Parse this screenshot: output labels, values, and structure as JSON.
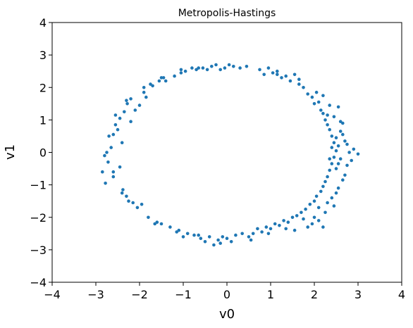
{
  "chart_data": {
    "type": "scatter",
    "title": "Metropolis-Hastings",
    "xlabel": "v0",
    "ylabel": "v1",
    "xlim": [
      -4,
      4
    ],
    "ylim": [
      -4,
      4
    ],
    "xticks": [
      -4,
      -3,
      -2,
      -1,
      0,
      1,
      2,
      3,
      4
    ],
    "yticks": [
      -4,
      -3,
      -2,
      -1,
      0,
      1,
      2,
      3,
      4
    ],
    "xtick_labels": [
      "−4",
      "−3",
      "−2",
      "−1",
      "0",
      "1",
      "2",
      "3",
      "4"
    ],
    "ytick_labels": [
      "−4",
      "−3",
      "−2",
      "−1",
      "0",
      "1",
      "2",
      "3",
      "4"
    ],
    "grid": false,
    "marker_color": "#1f77b4",
    "points": [
      [
        -2.85,
        -0.6
      ],
      [
        -2.8,
        -0.1
      ],
      [
        -2.78,
        -0.95
      ],
      [
        -2.72,
        -0.3
      ],
      [
        -2.7,
        0.5
      ],
      [
        -2.65,
        0.15
      ],
      [
        -2.6,
        -0.75
      ],
      [
        -2.6,
        0.55
      ],
      [
        -2.55,
        0.85
      ],
      [
        -2.5,
        0.7
      ],
      [
        -2.45,
        -0.45
      ],
      [
        -2.45,
        1.05
      ],
      [
        -2.4,
        0.3
      ],
      [
        -2.38,
        -1.15
      ],
      [
        -2.35,
        1.25
      ],
      [
        -2.3,
        -1.35
      ],
      [
        -2.28,
        1.5
      ],
      [
        -2.25,
        -1.5
      ],
      [
        -2.2,
        1.65
      ],
      [
        -2.2,
        0.95
      ],
      [
        -2.15,
        -1.55
      ],
      [
        -2.1,
        1.3
      ],
      [
        -2.05,
        -1.7
      ],
      [
        -2.0,
        1.45
      ],
      [
        -1.95,
        -1.6
      ],
      [
        -1.9,
        1.85
      ],
      [
        -1.85,
        1.7
      ],
      [
        -1.8,
        -2.0
      ],
      [
        -1.75,
        2.1
      ],
      [
        -1.7,
        2.05
      ],
      [
        -1.6,
        -2.15
      ],
      [
        -1.55,
        2.2
      ],
      [
        -1.5,
        -2.2
      ],
      [
        -1.45,
        2.3
      ],
      [
        -1.4,
        2.2
      ],
      [
        -1.3,
        -2.3
      ],
      [
        -1.2,
        2.35
      ],
      [
        -1.1,
        -2.4
      ],
      [
        -1.05,
        2.45
      ],
      [
        -1.0,
        -2.6
      ],
      [
        -0.95,
        2.5
      ],
      [
        -0.9,
        -2.5
      ],
      [
        -0.8,
        2.6
      ],
      [
        -0.75,
        -2.55
      ],
      [
        -0.7,
        2.55
      ],
      [
        -0.6,
        -2.65
      ],
      [
        -0.55,
        2.6
      ],
      [
        -0.5,
        -2.75
      ],
      [
        -0.45,
        2.55
      ],
      [
        -0.4,
        -2.6
      ],
      [
        -0.35,
        2.65
      ],
      [
        -0.3,
        -2.85
      ],
      [
        -0.25,
        2.7
      ],
      [
        -0.2,
        -2.7
      ],
      [
        -0.15,
        2.55
      ],
      [
        -0.1,
        -2.6
      ],
      [
        -0.05,
        2.6
      ],
      [
        0.0,
        -2.65
      ],
      [
        0.05,
        2.7
      ],
      [
        0.1,
        -2.75
      ],
      [
        0.15,
        2.65
      ],
      [
        0.2,
        -2.55
      ],
      [
        0.3,
        2.6
      ],
      [
        0.35,
        -2.5
      ],
      [
        0.45,
        2.65
      ],
      [
        0.5,
        -2.6
      ],
      [
        0.6,
        -2.5
      ],
      [
        0.7,
        -2.35
      ],
      [
        0.75,
        2.55
      ],
      [
        0.8,
        -2.45
      ],
      [
        0.85,
        2.4
      ],
      [
        0.9,
        -2.3
      ],
      [
        0.95,
        2.6
      ],
      [
        1.0,
        -2.35
      ],
      [
        1.05,
        2.45
      ],
      [
        1.1,
        -2.2
      ],
      [
        1.15,
        2.5
      ],
      [
        1.2,
        -2.25
      ],
      [
        1.25,
        2.3
      ],
      [
        1.3,
        -2.1
      ],
      [
        1.35,
        2.35
      ],
      [
        1.4,
        -2.15
      ],
      [
        1.45,
        2.2
      ],
      [
        1.5,
        -2.0
      ],
      [
        1.55,
        2.4
      ],
      [
        1.6,
        -1.95
      ],
      [
        1.65,
        2.1
      ],
      [
        1.7,
        -1.85
      ],
      [
        1.75,
        2.0
      ],
      [
        1.8,
        -1.75
      ],
      [
        1.85,
        1.8
      ],
      [
        1.9,
        -1.6
      ],
      [
        1.95,
        1.7
      ],
      [
        2.0,
        -1.5
      ],
      [
        2.0,
        1.5
      ],
      [
        2.05,
        -1.35
      ],
      [
        2.1,
        1.55
      ],
      [
        2.15,
        -1.2
      ],
      [
        2.15,
        1.3
      ],
      [
        2.2,
        -1.05
      ],
      [
        2.2,
        1.2
      ],
      [
        2.25,
        -0.9
      ],
      [
        2.25,
        1.0
      ],
      [
        2.3,
        -0.75
      ],
      [
        2.3,
        0.85
      ],
      [
        2.35,
        -0.55
      ],
      [
        2.35,
        0.7
      ],
      [
        2.4,
        -0.35
      ],
      [
        2.4,
        0.5
      ],
      [
        2.45,
        -0.15
      ],
      [
        2.45,
        0.3
      ],
      [
        2.5,
        0.05
      ],
      [
        2.5,
        -0.5
      ],
      [
        2.55,
        0.2
      ],
      [
        2.55,
        -1.1
      ],
      [
        2.6,
        -0.2
      ],
      [
        2.6,
        0.65
      ],
      [
        2.65,
        0.9
      ],
      [
        2.7,
        -0.7
      ],
      [
        2.7,
        0.35
      ],
      [
        2.75,
        -0.4
      ],
      [
        2.8,
        0.0
      ],
      [
        2.85,
        -0.25
      ],
      [
        2.9,
        0.1
      ],
      [
        3.0,
        -0.05
      ],
      [
        2.0,
        -2.0
      ],
      [
        2.1,
        -1.7
      ],
      [
        2.3,
        -1.55
      ],
      [
        2.4,
        -1.4
      ],
      [
        2.5,
        -1.25
      ],
      [
        1.95,
        -2.2
      ],
      [
        1.75,
        -2.05
      ],
      [
        1.35,
        -2.35
      ],
      [
        0.95,
        -2.5
      ],
      [
        0.55,
        -2.7
      ],
      [
        -0.15,
        -2.8
      ],
      [
        -0.65,
        -2.55
      ],
      [
        -1.15,
        -2.45
      ],
      [
        -1.65,
        -2.2
      ],
      [
        -2.4,
        -1.25
      ],
      [
        -2.6,
        -0.6
      ],
      [
        -2.75,
        0.0
      ],
      [
        -2.55,
        1.15
      ],
      [
        -2.3,
        1.6
      ],
      [
        -1.9,
        2.0
      ],
      [
        -1.5,
        2.3
      ],
      [
        -1.05,
        2.55
      ],
      [
        -0.65,
        2.6
      ],
      [
        1.15,
        2.4
      ],
      [
        1.65,
        2.25
      ],
      [
        2.05,
        1.85
      ],
      [
        2.2,
        1.75
      ],
      [
        2.35,
        1.45
      ],
      [
        2.45,
        1.1
      ],
      [
        2.55,
        1.4
      ],
      [
        2.65,
        0.55
      ],
      [
        2.75,
        0.25
      ],
      [
        2.65,
        -0.85
      ],
      [
        2.45,
        -1.65
      ],
      [
        2.25,
        -1.85
      ],
      [
        2.1,
        -2.1
      ],
      [
        2.2,
        -2.3
      ],
      [
        1.85,
        -2.3
      ],
      [
        1.55,
        -2.4
      ],
      [
        2.35,
        -0.2
      ],
      [
        2.4,
        0.15
      ],
      [
        2.5,
        0.45
      ],
      [
        2.55,
        -0.35
      ],
      [
        2.6,
        0.95
      ],
      [
        2.3,
        1.15
      ]
    ]
  }
}
